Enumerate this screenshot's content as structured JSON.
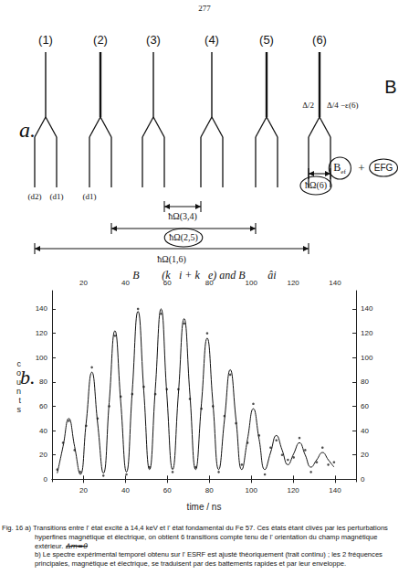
{
  "page_number": "277",
  "diagram": {
    "panel_label": "a.",
    "transitions": [
      "(1)",
      "(2)",
      "(3)",
      "(4)",
      "(5)",
      "(6)"
    ],
    "field_label": "B",
    "splitting_labels": [
      "Δ/2",
      "Δ/4 −ε(6)"
    ],
    "level_labels": [
      "(d2)",
      "(d1)",
      "(d1)"
    ],
    "frequencies": [
      {
        "label": "ħΩ(3,4)",
        "circled": false
      },
      {
        "label": "ħΩ(2,5)",
        "circled": true
      },
      {
        "label": "ħΩ(1,6)",
        "circled": false
      },
      {
        "label": "ħΩ(6)",
        "circled": true
      }
    ],
    "perturbations": {
      "magnetic": "B",
      "magnetic_index": "ef",
      "operator": "+",
      "electric": "EFG"
    }
  },
  "chart_panel_label": "b.",
  "chart_data": {
    "type": "line",
    "title": "B⃗ ⊥ (k⃗i + k⃗e) and B⃗ ⊥ âi",
    "x_label": "time / ns",
    "y_label": "counts",
    "x": [
      7.5,
      10.25,
      13,
      15.75,
      18.5,
      21.25,
      24,
      26.75,
      29.5,
      32.25,
      35,
      37.75,
      40.5,
      43.25,
      46,
      48.75,
      51.5,
      54.25,
      57,
      59.75,
      62.5,
      65.25,
      68,
      70.75,
      73.5,
      76.25,
      79,
      81.75,
      84.5,
      87.25,
      90,
      92.75,
      95.5,
      98.25,
      101,
      103.75,
      106.5,
      109.25,
      112,
      114.75,
      117.5,
      120.25,
      123,
      125.75,
      128.5,
      131.25,
      134,
      136.75,
      139.5
    ],
    "series": [
      {
        "type": "scatter",
        "marker": "circle",
        "color": "#222222",
        "values": [
          8,
          30,
          48,
          24,
          6,
          44,
          92,
          50,
          3,
          60,
          118,
          68,
          4,
          70,
          140,
          76,
          10,
          70,
          136,
          74,
          6,
          74,
          128,
          66,
          10,
          58,
          120,
          60,
          6,
          52,
          86,
          46,
          12,
          30,
          62,
          36,
          4,
          26,
          32,
          20,
          16,
          18,
          34,
          24,
          6,
          14,
          26,
          12,
          14
        ]
      },
      {
        "type": "line",
        "line_style": "solid",
        "color": "#111111",
        "values": [
          5,
          27,
          50,
          27,
          4,
          46,
          88,
          46,
          5,
          63,
          122,
          64,
          6,
          72,
          138,
          73,
          8,
          74,
          140,
          70,
          8,
          70,
          132,
          70,
          8,
          62,
          116,
          62,
          8,
          49,
          90,
          49,
          8,
          33,
          58,
          33,
          8,
          22,
          36,
          24,
          12,
          21,
          30,
          20,
          10,
          16,
          22,
          16,
          10
        ]
      }
    ],
    "xlim": [
      5,
      150
    ],
    "ylim": [
      -2,
      155
    ],
    "xticks": [
      20,
      40,
      60,
      80,
      100,
      120,
      140
    ],
    "yticks": [
      0,
      20,
      40,
      60,
      80,
      100,
      120,
      140
    ],
    "grid": false
  },
  "caption": {
    "label": "Fig. 16",
    "a": "a) Transitions entre l' état excité à 14,4 keV et l' état fondamental du Fe 57. Ces états étant clivés par les perturbations hyperfines magnétique et électrique, on obtient 6 transitions compte tenu de l' orientation du champ magnétique extérieur.",
    "annotation": "Δm=0",
    "b": "b) Le spectre expérimental temporel obtenu sur l' ESRF est ajusté théoriquement (trait continu) ; les 2 fréquences principales, magnétique et électrique, se traduisent par des battements rapides et par leur enveloppe."
  }
}
